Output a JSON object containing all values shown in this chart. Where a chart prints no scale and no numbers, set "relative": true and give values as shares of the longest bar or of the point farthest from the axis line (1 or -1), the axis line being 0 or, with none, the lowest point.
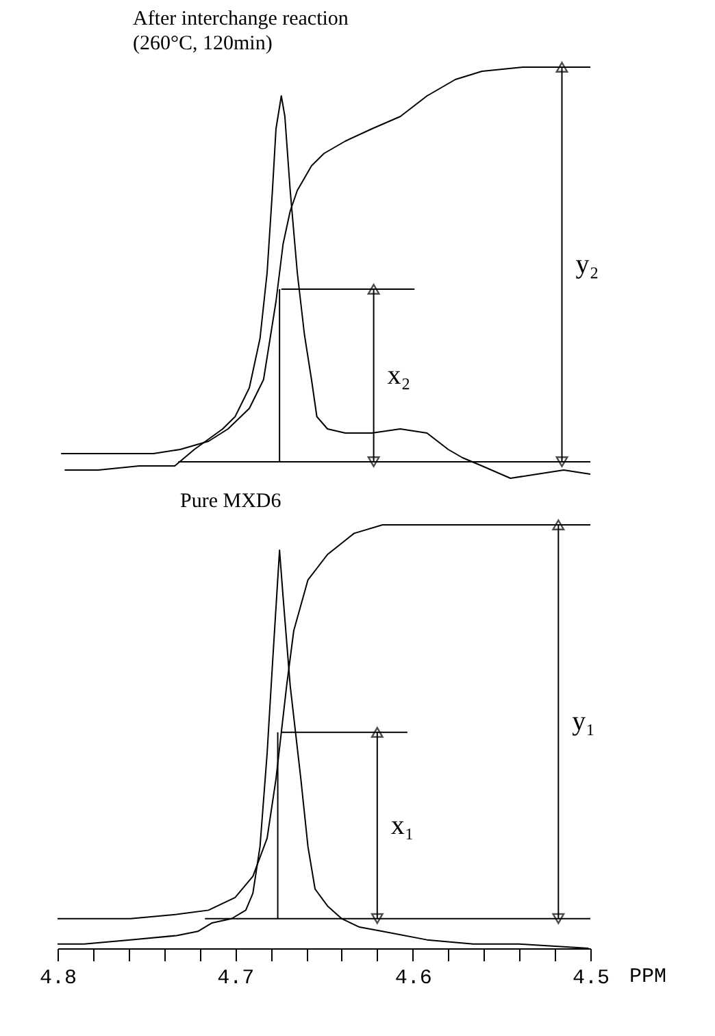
{
  "chart_data": [
    {
      "type": "line",
      "title": "After interchange reaction\n(260°C, 120min)",
      "relative": true,
      "xlim": [
        4.8,
        4.5
      ],
      "tick_labels": false,
      "series": [
        {
          "color": "#000000",
          "x": [
            4.796,
            4.777,
            4.754,
            4.734,
            4.723,
            4.707,
            4.7,
            4.692,
            4.686,
            4.682,
            4.679,
            4.677,
            4.674,
            4.672,
            4.669,
            4.665,
            4.661,
            4.657,
            4.654,
            4.648,
            4.638,
            4.623,
            4.607,
            4.592,
            4.58,
            4.572,
            4.561,
            4.545,
            4.53,
            4.515,
            4.5
          ],
          "values": [
            0.02,
            0.02,
            0.03,
            0.03,
            0.07,
            0.12,
            0.15,
            0.22,
            0.34,
            0.5,
            0.7,
            0.85,
            0.93,
            0.88,
            0.7,
            0.5,
            0.35,
            0.24,
            0.15,
            0.12,
            0.11,
            0.11,
            0.12,
            0.11,
            0.07,
            0.05,
            0.03,
            0.0,
            0.01,
            0.02,
            0.01
          ]
        },
        {
          "color": "#000000",
          "x": [
            4.798,
            4.746,
            4.731,
            4.715,
            4.704,
            4.692,
            4.684,
            4.677,
            4.673,
            4.669,
            4.665,
            4.657,
            4.65,
            4.638,
            4.623,
            4.607,
            4.592,
            4.576,
            4.561,
            4.538,
            4.5
          ],
          "values": [
            0.06,
            0.06,
            0.07,
            0.09,
            0.12,
            0.17,
            0.24,
            0.43,
            0.57,
            0.65,
            0.7,
            0.76,
            0.79,
            0.82,
            0.85,
            0.88,
            0.93,
            0.97,
            0.99,
            1.0,
            1.0
          ]
        },
        {
          "color": "#000000",
          "x": [
            4.732,
            4.5
          ],
          "values": [
            0.04,
            0.04
          ]
        },
        {
          "color": "#000000",
          "x": [
            4.674,
            4.599
          ],
          "values": [
            0.46,
            0.46
          ]
        },
        {
          "color": "#000000",
          "x": [
            4.675,
            4.675
          ],
          "values": [
            0.04,
            0.46
          ]
        },
        {
          "color": "#000000",
          "x": [
            4.622,
            4.622
          ],
          "values": [
            0.04,
            0.46
          ],
          "marker": "triangle"
        },
        {
          "color": "#000000",
          "x": [
            4.516,
            4.516
          ],
          "values": [
            0.04,
            1.0
          ],
          "marker": "triangle"
        }
      ],
      "annotations": [
        "x₂",
        "y₂"
      ]
    },
    {
      "type": "line",
      "title": "Pure MXD6",
      "relative": true,
      "xlabel": "PPM",
      "xlim": [
        4.8,
        4.5
      ],
      "xticks": [
        4.8,
        {
          "value": 4.78,
          "label": null
        },
        {
          "value": 4.76,
          "label": null
        },
        {
          "value": 4.74,
          "label": null
        },
        {
          "value": 4.72,
          "label": null
        },
        4.7,
        {
          "value": 4.68,
          "label": null
        },
        {
          "value": 4.66,
          "label": null
        },
        {
          "value": 4.64,
          "label": null
        },
        {
          "value": 4.62,
          "label": null
        },
        4.6,
        {
          "value": 4.58,
          "label": null
        },
        {
          "value": 4.56,
          "label": null
        },
        {
          "value": 4.54,
          "label": null
        },
        {
          "value": 4.52,
          "label": null
        },
        4.5
      ],
      "tick_labels": "x",
      "series": [
        {
          "color": "#000000",
          "x": [
            4.8,
            4.785,
            4.759,
            4.733,
            4.721,
            4.713,
            4.702,
            4.694,
            4.69,
            4.686,
            4.682,
            4.679,
            4.675,
            4.673,
            4.669,
            4.663,
            4.659,
            4.655,
            4.648,
            4.64,
            4.63,
            4.617,
            4.592,
            4.566,
            4.54,
            4.501
          ],
          "values": [
            0.01,
            0.01,
            0.02,
            0.03,
            0.04,
            0.06,
            0.07,
            0.09,
            0.13,
            0.24,
            0.46,
            0.67,
            0.94,
            0.83,
            0.62,
            0.4,
            0.24,
            0.14,
            0.1,
            0.07,
            0.05,
            0.04,
            0.02,
            0.01,
            0.01,
            0.0
          ]
        },
        {
          "color": "#000000",
          "x": [
            4.8,
            4.759,
            4.733,
            4.715,
            4.7,
            4.69,
            4.682,
            4.677,
            4.671,
            4.667,
            4.659,
            4.648,
            4.633,
            4.617,
            4.592,
            4.566,
            4.5
          ],
          "values": [
            0.07,
            0.07,
            0.08,
            0.09,
            0.12,
            0.17,
            0.26,
            0.4,
            0.62,
            0.75,
            0.87,
            0.93,
            0.98,
            1.0,
            1.0,
            1.0,
            1.0
          ]
        },
        {
          "color": "#000000",
          "x": [
            4.717,
            4.5
          ],
          "values": [
            0.07,
            0.07
          ]
        },
        {
          "color": "#000000",
          "x": [
            4.674,
            4.603
          ],
          "values": [
            0.51,
            0.51
          ]
        },
        {
          "color": "#000000",
          "x": [
            4.676,
            4.676
          ],
          "values": [
            0.07,
            0.51
          ]
        },
        {
          "color": "#000000",
          "x": [
            4.62,
            4.62
          ],
          "values": [
            0.07,
            0.51
          ],
          "marker": "triangle"
        },
        {
          "color": "#000000",
          "x": [
            4.518,
            4.518
          ],
          "values": [
            0.07,
            1.0
          ],
          "marker": "triangle"
        }
      ],
      "annotations": [
        "x₁",
        "y₁"
      ]
    }
  ]
}
